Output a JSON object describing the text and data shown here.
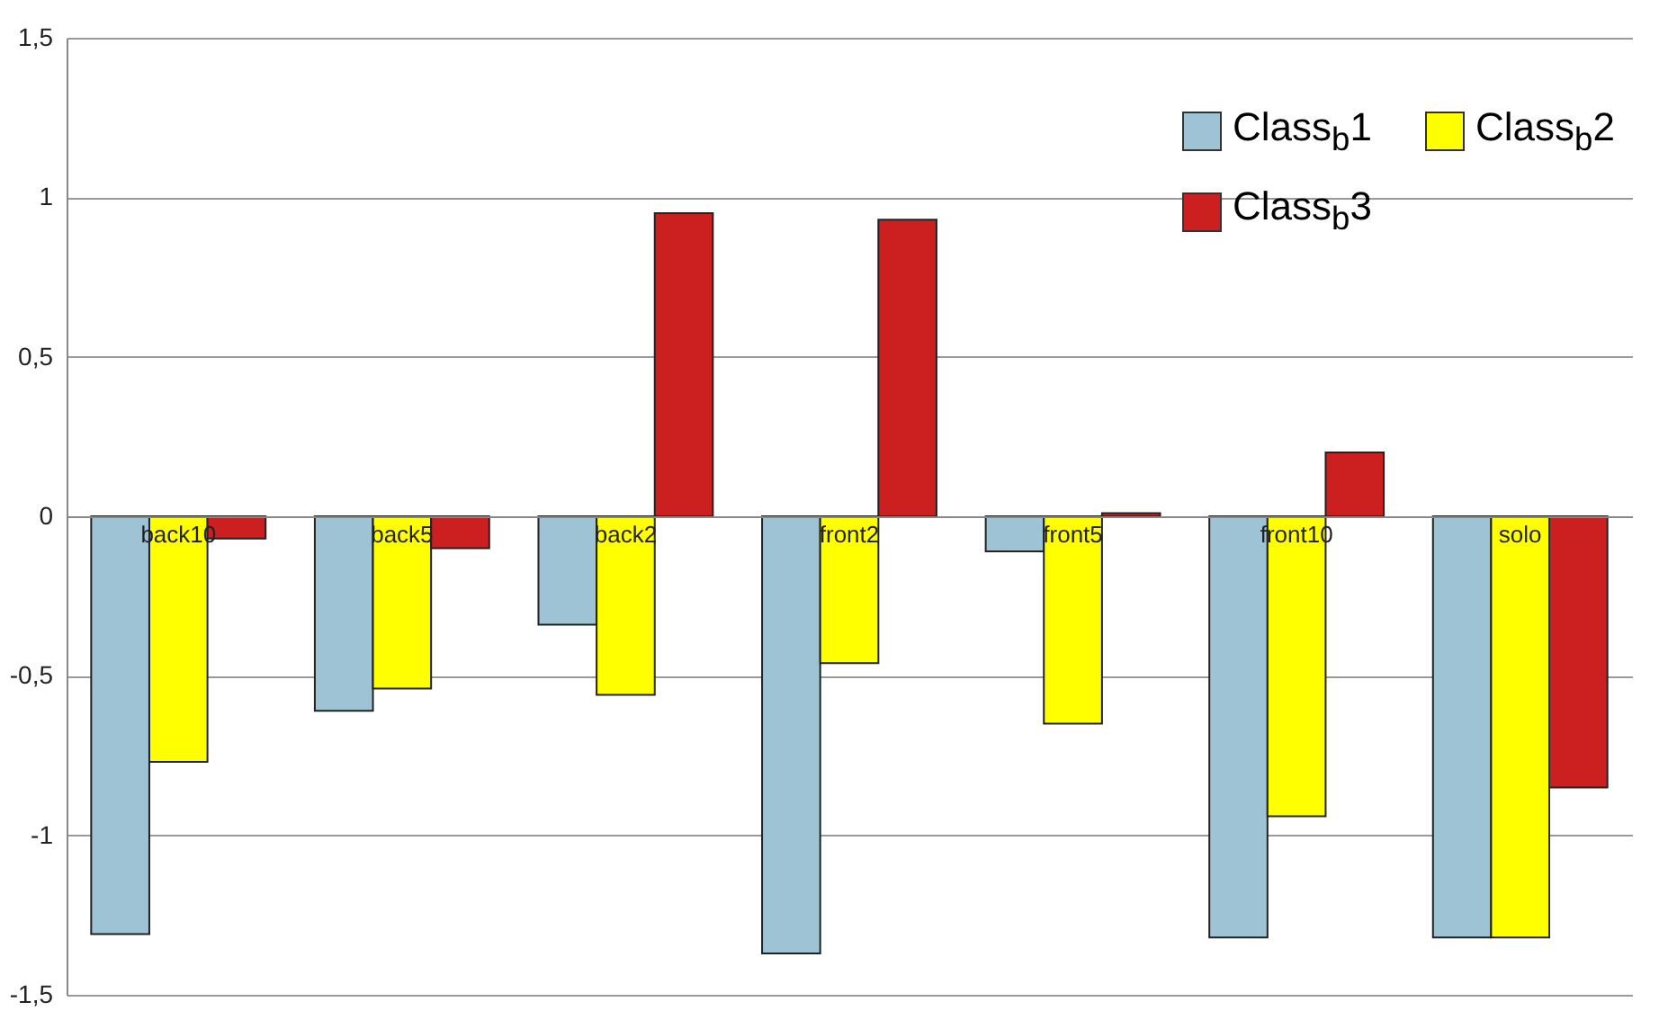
{
  "chart_data": {
    "type": "bar",
    "categories": [
      "back10",
      "back5",
      "back2",
      "front2",
      "front5",
      "front10",
      "solo"
    ],
    "series": [
      {
        "name": "Class$_{b}$1",
        "color": "#9dc3d4",
        "values": [
          -1.31,
          -0.61,
          -0.34,
          -1.37,
          -0.11,
          -1.32,
          -1.32
        ]
      },
      {
        "name": "Class$_{b}$2",
        "color": "#ffff00",
        "values": [
          -0.77,
          -0.54,
          -0.56,
          -0.46,
          -0.65,
          -0.94,
          -1.32
        ]
      },
      {
        "name": "Class$_{b}$3",
        "color": "#cc1f1f",
        "values": [
          -0.07,
          -0.1,
          0.95,
          0.93,
          0.01,
          0.2,
          -0.85
        ]
      }
    ],
    "ylim": [
      -1.5,
      1.5
    ],
    "yticks": [
      {
        "value": -1.5,
        "label": "-1,5"
      },
      -1,
      {
        "value": -0.5,
        "label": "-0,5"
      },
      0,
      {
        "value": 0.5,
        "label": "0,5"
      },
      1,
      {
        "value": 1.5,
        "label": "1,5"
      }
    ],
    "grid": "y",
    "legend": "top right"
  }
}
